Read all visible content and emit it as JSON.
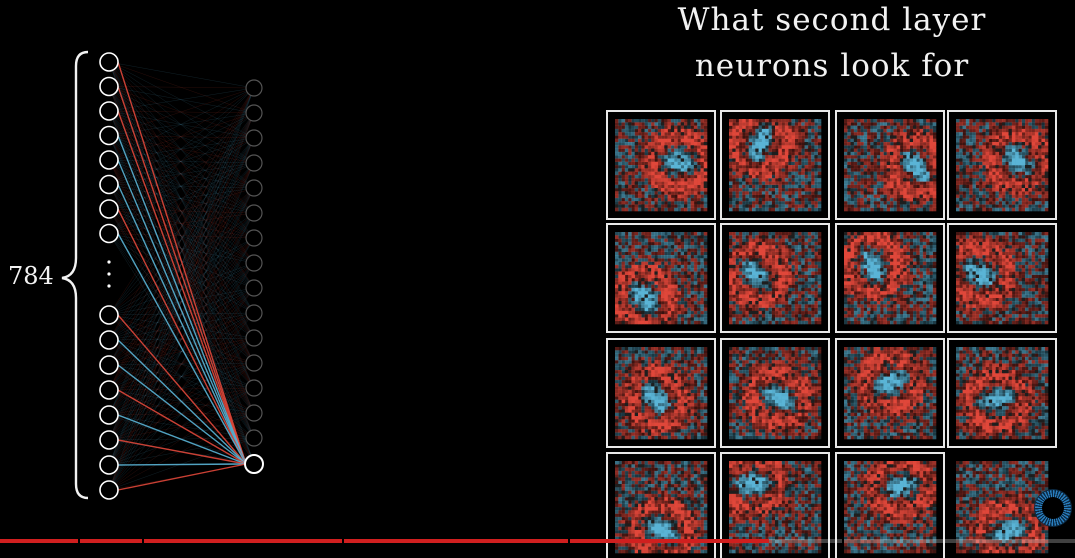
{
  "title": {
    "line1": "What second layer",
    "line2": "neurons look for"
  },
  "input_layer": {
    "count_label": "784",
    "ellipsis": "⋮"
  },
  "colors": {
    "background": "#000000",
    "positive_weight": "#e0473a",
    "negative_weight": "#5ab4d6",
    "neuron_outline": "#ffffff",
    "progress": "#d01f1f"
  },
  "video": {
    "progress_fraction": 0.715
  },
  "icons": [
    "loading-spinner-icon"
  ]
}
